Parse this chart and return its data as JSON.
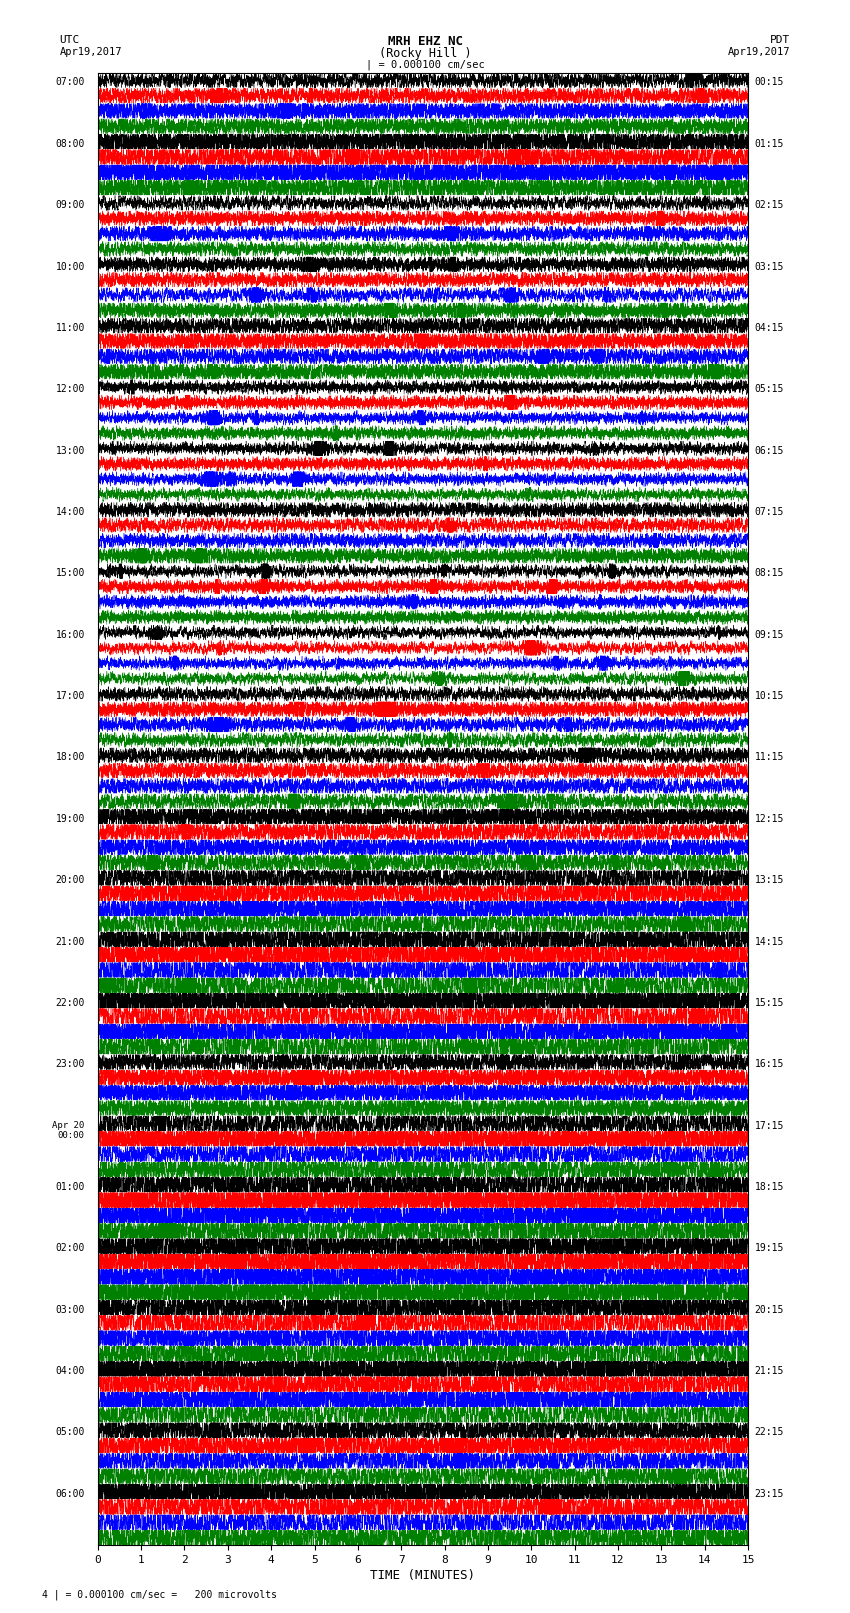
{
  "title_line1": "MRH EHZ NC",
  "title_line2": "(Rocky Hill )",
  "title_line3": "| = 0.000100 cm/sec",
  "label_utc": "UTC",
  "label_pdt": "PDT",
  "date_left": "Apr19,2017",
  "date_right": "Apr19,2017",
  "xlabel": "TIME (MINUTES)",
  "footer": "4 | = 0.000100 cm/sec =   200 microvolts",
  "left_times": [
    "07:00",
    "08:00",
    "09:00",
    "10:00",
    "11:00",
    "12:00",
    "13:00",
    "14:00",
    "15:00",
    "16:00",
    "17:00",
    "18:00",
    "19:00",
    "20:00",
    "21:00",
    "22:00",
    "23:00",
    "Apr 20\n00:00",
    "01:00",
    "02:00",
    "03:00",
    "04:00",
    "05:00",
    "06:00"
  ],
  "right_times": [
    "00:15",
    "01:15",
    "02:15",
    "03:15",
    "04:15",
    "05:15",
    "06:15",
    "07:15",
    "08:15",
    "09:15",
    "10:15",
    "11:15",
    "12:15",
    "13:15",
    "14:15",
    "15:15",
    "16:15",
    "17:15",
    "18:15",
    "19:15",
    "20:15",
    "21:15",
    "22:15",
    "23:15"
  ],
  "num_rows": 24,
  "traces_per_row": 4,
  "colors": [
    "black",
    "red",
    "blue",
    "green"
  ],
  "bg_color": "white",
  "time_minutes": 15,
  "x_ticks": [
    0,
    1,
    2,
    3,
    4,
    5,
    6,
    7,
    8,
    9,
    10,
    11,
    12,
    13,
    14,
    15
  ],
  "noise_seed": 42,
  "amp_by_row": [
    1.2,
    1.8,
    1.0,
    1.0,
    1.2,
    0.8,
    0.8,
    1.0,
    0.8,
    0.8,
    1.0,
    1.2,
    1.5,
    2.0,
    2.5,
    2.5,
    1.5,
    2.0,
    2.5,
    2.5,
    2.5,
    2.5,
    2.0,
    2.5
  ]
}
